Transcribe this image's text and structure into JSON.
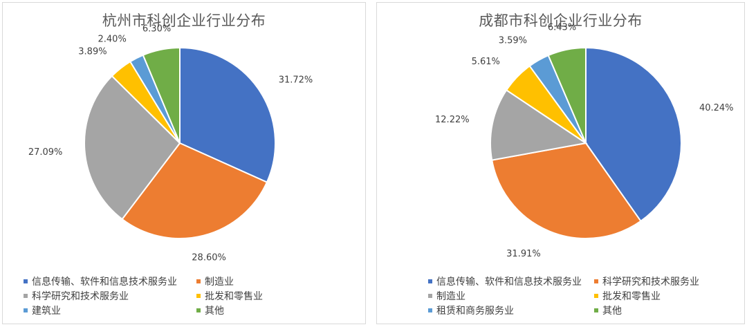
{
  "chart_data": [
    {
      "type": "pie",
      "title": "杭州市科创企业行业分布",
      "slices": [
        {
          "label": "信息传输、软件和信息技术服务业",
          "value": 31.72,
          "display": "31.72%",
          "color": "#4472c4"
        },
        {
          "label": "制造业",
          "value": 28.6,
          "display": "28.60%",
          "color": "#ed7d31"
        },
        {
          "label": "科学研究和技术服务业",
          "value": 27.09,
          "display": "27.09%",
          "color": "#a5a5a5"
        },
        {
          "label": "批发和零售业",
          "value": 3.89,
          "display": "3.89%",
          "color": "#ffc000"
        },
        {
          "label": "建筑业",
          "value": 2.4,
          "display": "2.40%",
          "color": "#5b9bd5"
        },
        {
          "label": "其他",
          "value": 6.3,
          "display": "6.30%",
          "color": "#70ad47"
        }
      ],
      "legend_position": "bottom"
    },
    {
      "type": "pie",
      "title": "成都市科创企业行业分布",
      "slices": [
        {
          "label": "信息传输、软件和信息技术服务业",
          "value": 40.24,
          "display": "40.24%",
          "color": "#4472c4"
        },
        {
          "label": "科学研究和技术服务业",
          "value": 31.91,
          "display": "31.91%",
          "color": "#ed7d31"
        },
        {
          "label": "制造业",
          "value": 12.22,
          "display": "12.22%",
          "color": "#a5a5a5"
        },
        {
          "label": "批发和零售业",
          "value": 5.61,
          "display": "5.61%",
          "color": "#ffc000"
        },
        {
          "label": "租赁和商务服务业",
          "value": 3.59,
          "display": "3.59%",
          "color": "#5b9bd5"
        },
        {
          "label": "其他",
          "value": 6.43,
          "display": "6.43%",
          "color": "#70ad47"
        }
      ],
      "legend_position": "bottom"
    }
  ]
}
